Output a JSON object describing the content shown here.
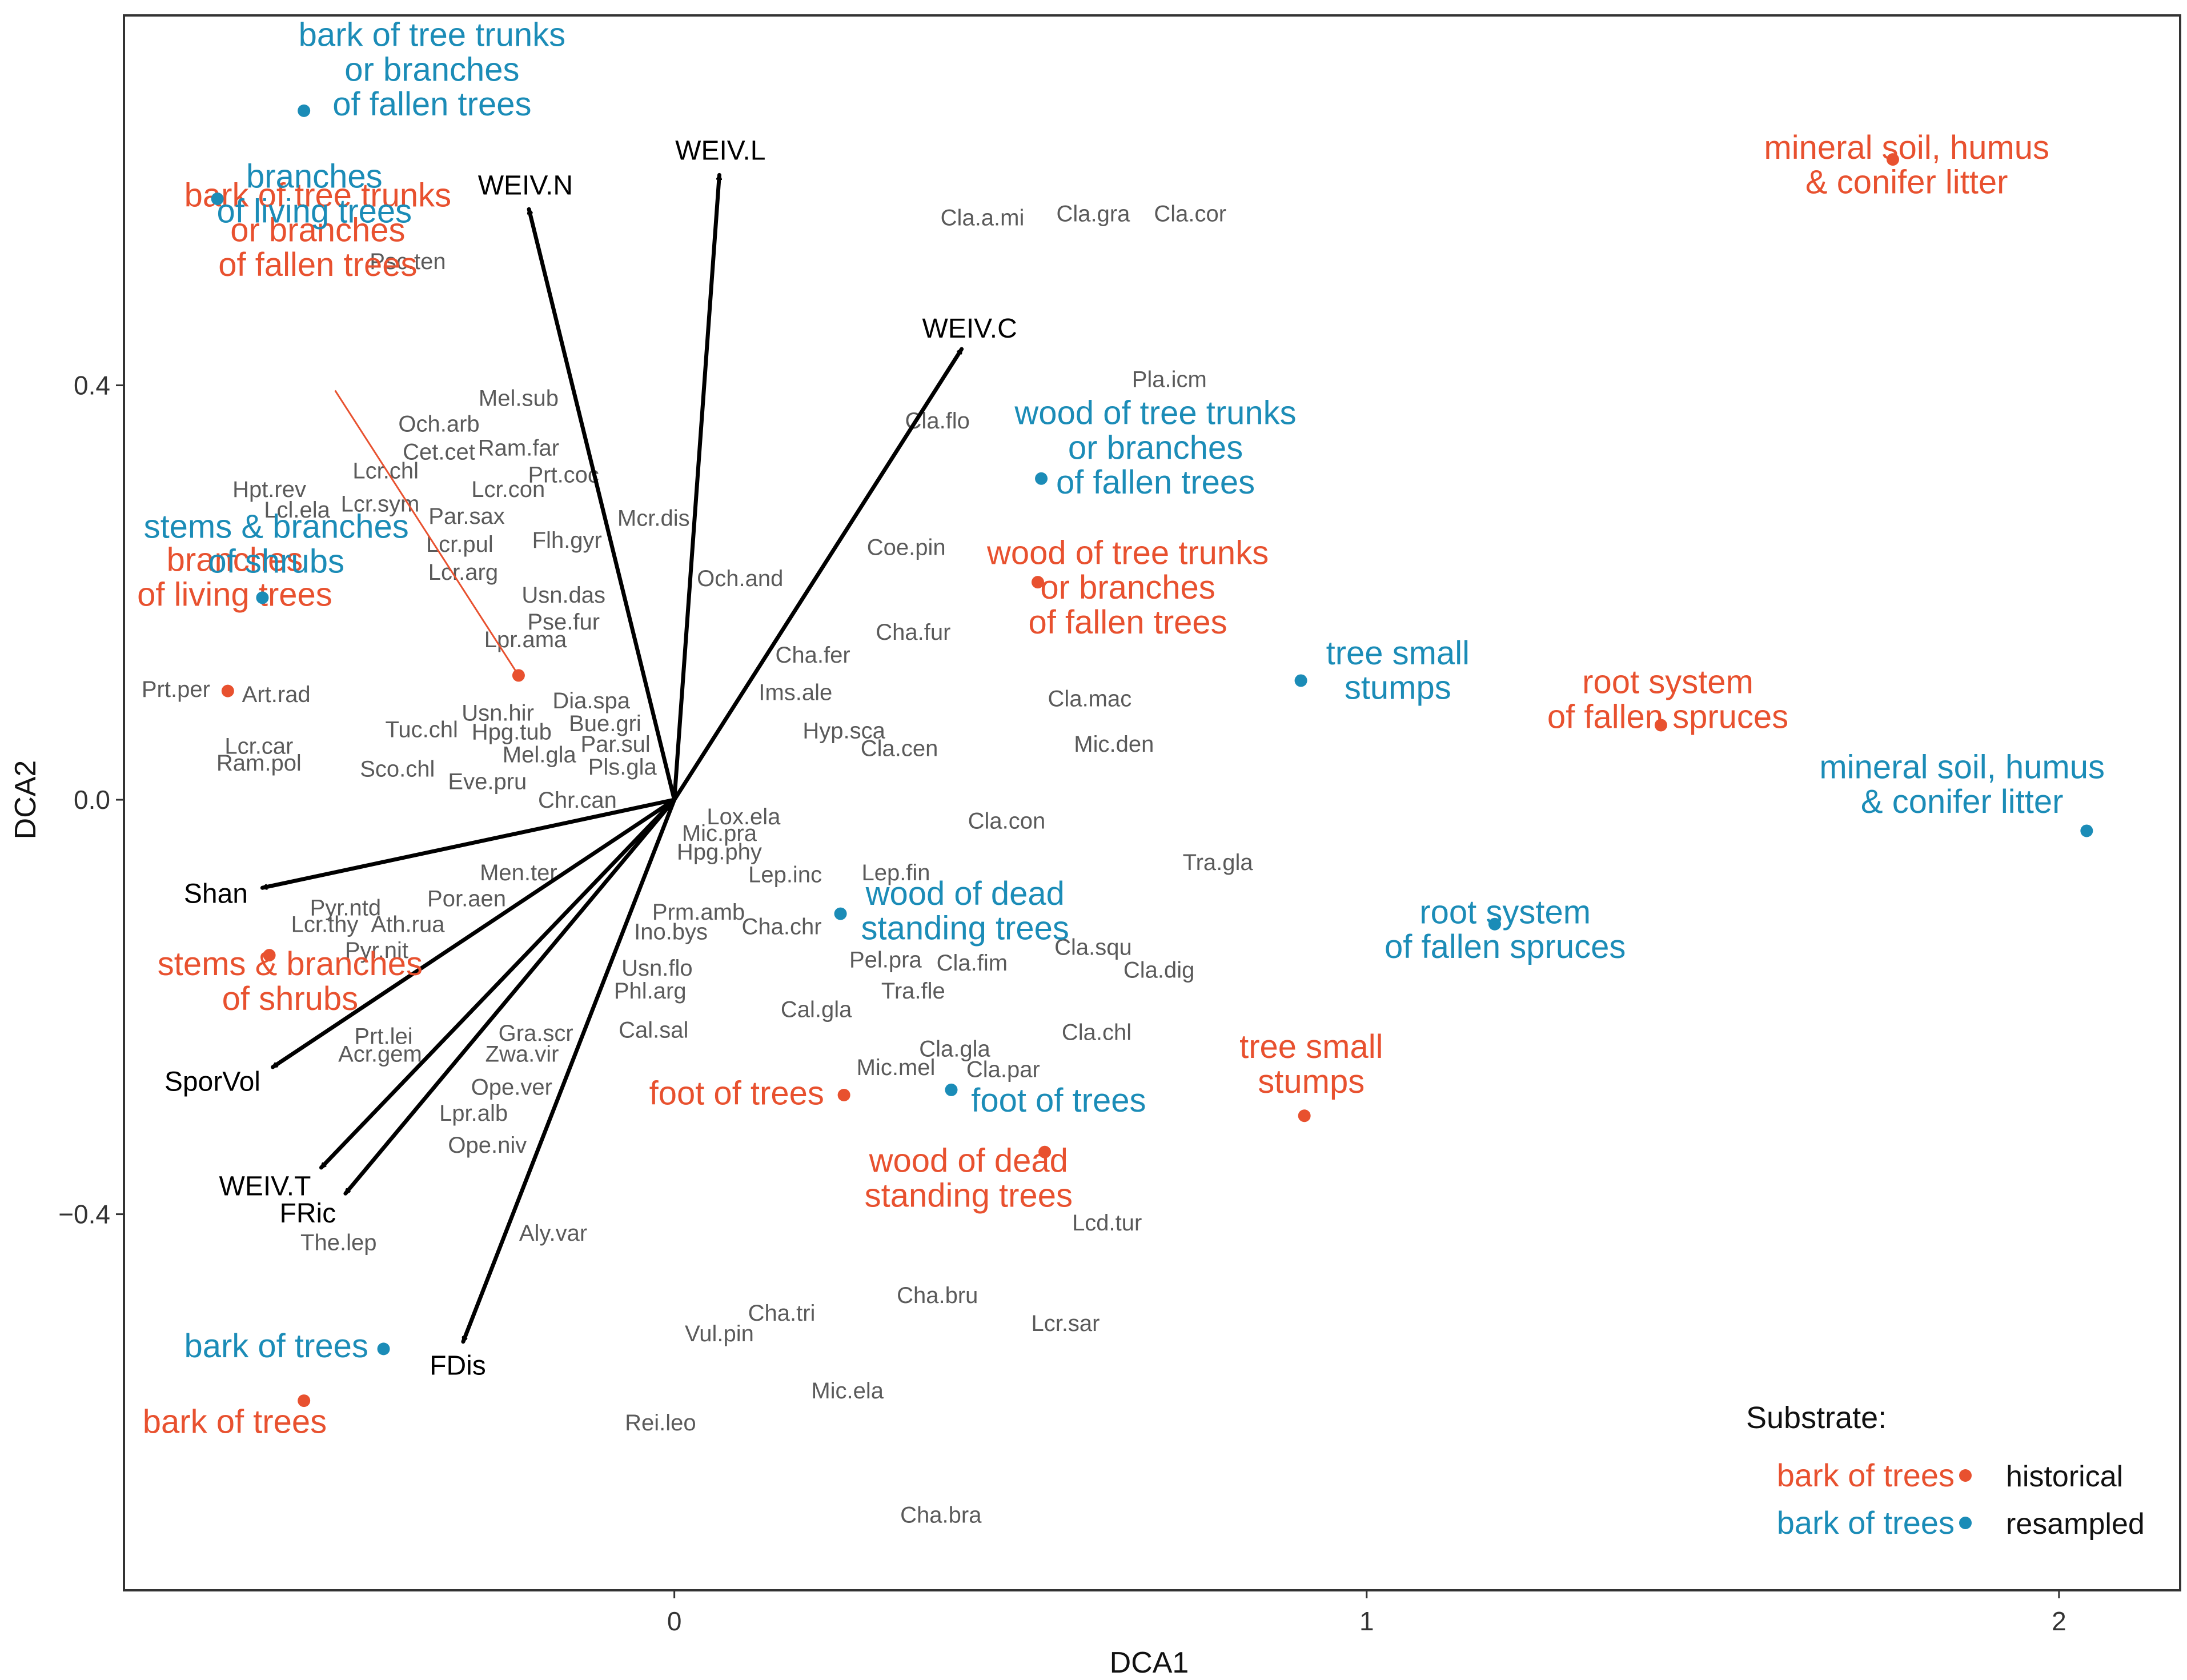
{
  "chart_data": {
    "type": "scatter",
    "title": "",
    "xlabel": "DCA1",
    "ylabel": "DCA2",
    "xlim": [
      -0.795,
      2.175
    ],
    "ylim": [
      -0.763,
      0.757
    ],
    "xticks": [
      {
        "value": 0,
        "label": "0"
      },
      {
        "value": 1,
        "label": "1"
      },
      {
        "value": 2,
        "label": "2"
      }
    ],
    "yticks": [
      {
        "value": 0.4,
        "label": "0.4"
      },
      {
        "value": 0.0,
        "label": "0.0"
      },
      {
        "value": -0.4,
        "label": "−0.4"
      }
    ],
    "grid": false,
    "colors": {
      "historical": "#e8512f",
      "resampled": "#1b8cb7",
      "arrow": "#000000",
      "species": "#5a5a5a",
      "frame": "#333333"
    },
    "legend": {
      "position": "bottom-right",
      "title": "Substrate:",
      "entries": [
        {
          "sample": "bark of trees",
          "label": "historical",
          "group": "historical"
        },
        {
          "sample": "bark of trees",
          "label": "resampled",
          "group": "resampled"
        }
      ]
    },
    "vectors": [
      {
        "label": "WEIV.N",
        "x": -0.21,
        "y": 0.57
      },
      {
        "label": "WEIV.L",
        "x": 0.065,
        "y": 0.603
      },
      {
        "label": "WEIV.C",
        "x": 0.415,
        "y": 0.435
      },
      {
        "label": "Shan",
        "x": -0.595,
        "y": -0.085
      },
      {
        "label": "SporVol",
        "x": -0.58,
        "y": -0.258
      },
      {
        "label": "WEIV.T",
        "x": -0.51,
        "y": -0.355
      },
      {
        "label": "FRic",
        "x": -0.475,
        "y": -0.38
      },
      {
        "label": "FDis",
        "x": -0.305,
        "y": -0.523
      }
    ],
    "series": [
      {
        "name": "historical",
        "points": [
          {
            "label": [
              "bark of tree trunks",
              "or branches",
              "of fallen trees"
            ],
            "x": -0.225,
            "y": 0.12
          },
          {
            "label": [
              "branches",
              "of living trees"
            ],
            "x": -0.645,
            "y": 0.105
          },
          {
            "label": [
              "stems & branches",
              "of shrubs"
            ],
            "x": -0.585,
            "y": -0.15
          },
          {
            "label": [
              "bark of trees"
            ],
            "x": -0.535,
            "y": -0.58
          },
          {
            "label": [
              "foot of trees"
            ],
            "x": 0.245,
            "y": -0.285
          },
          {
            "label": [
              "wood of dead",
              "standing trees"
            ],
            "x": 0.535,
            "y": -0.34
          },
          {
            "label": [
              "wood of tree trunks",
              "or branches",
              "of fallen trees"
            ],
            "x": 0.525,
            "y": 0.21
          },
          {
            "label": [
              "tree small",
              "stumps"
            ],
            "x": 0.91,
            "y": -0.305
          },
          {
            "label": [
              "root system",
              "of fallen spruces"
            ],
            "x": 1.425,
            "y": 0.072
          },
          {
            "label": [
              "mineral soil, humus",
              "& conifer litter"
            ],
            "x": 1.76,
            "y": 0.618
          }
        ]
      },
      {
        "name": "resampled",
        "points": [
          {
            "label": [
              "bark of tree trunks",
              "or branches",
              "of fallen trees"
            ],
            "x": -0.535,
            "y": 0.665
          },
          {
            "label": [
              "branches",
              "of living trees"
            ],
            "x": -0.66,
            "y": 0.58
          },
          {
            "label": [
              "stems & branches",
              "of shrubs"
            ],
            "x": -0.595,
            "y": 0.195
          },
          {
            "label": [
              "bark of trees"
            ],
            "x": -0.42,
            "y": -0.53
          },
          {
            "label": [
              "foot of trees"
            ],
            "x": 0.4,
            "y": -0.28
          },
          {
            "label": [
              "wood of dead",
              "standing trees"
            ],
            "x": 0.24,
            "y": -0.11
          },
          {
            "label": [
              "wood of tree trunks",
              "or branches",
              "of fallen trees"
            ],
            "x": 0.53,
            "y": 0.31
          },
          {
            "label": [
              "tree small",
              "stumps"
            ],
            "x": 0.905,
            "y": 0.115
          },
          {
            "label": [
              "root system",
              "of fallen spruces"
            ],
            "x": 1.185,
            "y": -0.12
          },
          {
            "label": [
              "mineral soil, humus",
              "& conifer litter"
            ],
            "x": 2.04,
            "y": -0.03
          }
        ]
      }
    ],
    "species": [
      {
        "label": "Psc.ten",
        "x": -0.385,
        "y": 0.52
      },
      {
        "label": "Mel.sub",
        "x": -0.225,
        "y": 0.388
      },
      {
        "label": "Och.arb",
        "x": -0.34,
        "y": 0.363
      },
      {
        "label": "Cet.cet",
        "x": -0.34,
        "y": 0.336
      },
      {
        "label": "Ram.far",
        "x": -0.225,
        "y": 0.34
      },
      {
        "label": "Lcr.chl",
        "x": -0.417,
        "y": 0.318
      },
      {
        "label": "Prt.coc",
        "x": -0.16,
        "y": 0.314
      },
      {
        "label": "Lcr.con",
        "x": -0.24,
        "y": 0.3
      },
      {
        "label": "Hpt.rev",
        "x": -0.585,
        "y": 0.3
      },
      {
        "label": "Lcl.ela",
        "x": -0.545,
        "y": 0.28
      },
      {
        "label": "Lcr.sym",
        "x": -0.425,
        "y": 0.286
      },
      {
        "label": "Par.sax",
        "x": -0.3,
        "y": 0.274
      },
      {
        "label": "Mcr.dis",
        "x": -0.03,
        "y": 0.272
      },
      {
        "label": "Lcr.pul",
        "x": -0.31,
        "y": 0.247
      },
      {
        "label": "Flh.gyr",
        "x": -0.155,
        "y": 0.251
      },
      {
        "label": "Lcr.arg",
        "x": -0.305,
        "y": 0.22
      },
      {
        "label": "Och.and",
        "x": 0.095,
        "y": 0.214
      },
      {
        "label": "Usn.das",
        "x": -0.16,
        "y": 0.198
      },
      {
        "label": "Pse.fur",
        "x": -0.16,
        "y": 0.172
      },
      {
        "label": "Lpr.ama",
        "x": -0.215,
        "y": 0.155
      },
      {
        "label": "Prt.per",
        "x": -0.72,
        "y": 0.107
      },
      {
        "label": "Art.rad",
        "x": -0.575,
        "y": 0.102
      },
      {
        "label": "Dia.spa",
        "x": -0.12,
        "y": 0.096
      },
      {
        "label": "Usn.hir",
        "x": -0.255,
        "y": 0.084
      },
      {
        "label": "Bue.gri",
        "x": -0.1,
        "y": 0.074
      },
      {
        "label": "Hpg.tub",
        "x": -0.235,
        "y": 0.066
      },
      {
        "label": "Tuc.chl",
        "x": -0.365,
        "y": 0.068
      },
      {
        "label": "Par.sul",
        "x": -0.085,
        "y": 0.054
      },
      {
        "label": "Mel.gla",
        "x": -0.195,
        "y": 0.044
      },
      {
        "label": "Pls.gla",
        "x": -0.075,
        "y": 0.032
      },
      {
        "label": "Lcr.car",
        "x": -0.6,
        "y": 0.052
      },
      {
        "label": "Ram.pol",
        "x": -0.6,
        "y": 0.036
      },
      {
        "label": "Sco.chl",
        "x": -0.4,
        "y": 0.03
      },
      {
        "label": "Eve.pru",
        "x": -0.27,
        "y": 0.018
      },
      {
        "label": "Chr.can",
        "x": -0.14,
        "y": 0.0
      },
      {
        "label": "Men.ter",
        "x": -0.225,
        "y": -0.07
      },
      {
        "label": "Por.aen",
        "x": -0.3,
        "y": -0.095
      },
      {
        "label": "Pyr.ntd",
        "x": -0.475,
        "y": -0.104
      },
      {
        "label": "Lcr.thy",
        "x": -0.505,
        "y": -0.12
      },
      {
        "label": "Ath.rua",
        "x": -0.385,
        "y": -0.12
      },
      {
        "label": "Pyr.nit",
        "x": -0.43,
        "y": -0.145
      },
      {
        "label": "Prt.lei",
        "x": -0.42,
        "y": -0.228
      },
      {
        "label": "Acr.gem",
        "x": -0.425,
        "y": -0.245
      },
      {
        "label": "Gra.scr",
        "x": -0.2,
        "y": -0.225
      },
      {
        "label": "Zwa.vir",
        "x": -0.22,
        "y": -0.245
      },
      {
        "label": "Ope.ver",
        "x": -0.235,
        "y": -0.277
      },
      {
        "label": "Lpr.alb",
        "x": -0.29,
        "y": -0.302
      },
      {
        "label": "Ope.niv",
        "x": -0.27,
        "y": -0.333
      },
      {
        "label": "The.lep",
        "x": -0.485,
        "y": -0.427
      },
      {
        "label": "Aly.var",
        "x": -0.175,
        "y": -0.418
      },
      {
        "label": "Lox.ela",
        "x": 0.1,
        "y": -0.016
      },
      {
        "label": "Mic.pra",
        "x": 0.065,
        "y": -0.032
      },
      {
        "label": "Hpg.phy",
        "x": 0.065,
        "y": -0.05
      },
      {
        "label": "Lep.inc",
        "x": 0.16,
        "y": -0.072
      },
      {
        "label": "Lep.fin",
        "x": 0.32,
        "y": -0.07
      },
      {
        "label": "Prm.amb",
        "x": 0.035,
        "y": -0.108
      },
      {
        "label": "Cha.chr",
        "x": 0.155,
        "y": -0.122
      },
      {
        "label": "Ino.bys",
        "x": -0.005,
        "y": -0.127
      },
      {
        "label": "Usn.flo",
        "x": -0.025,
        "y": -0.162
      },
      {
        "label": "Phl.arg",
        "x": -0.035,
        "y": -0.184
      },
      {
        "label": "Cal.sal",
        "x": -0.03,
        "y": -0.222
      },
      {
        "label": "Pel.pra",
        "x": 0.305,
        "y": -0.154
      },
      {
        "label": "Cla.fim",
        "x": 0.43,
        "y": -0.157
      },
      {
        "label": "Tra.fle",
        "x": 0.345,
        "y": -0.184
      },
      {
        "label": "Cal.gla",
        "x": 0.205,
        "y": -0.202
      },
      {
        "label": "Cla.gla",
        "x": 0.405,
        "y": -0.24
      },
      {
        "label": "Mic.mel",
        "x": 0.32,
        "y": -0.258
      },
      {
        "label": "Cla.par",
        "x": 0.475,
        "y": -0.26
      },
      {
        "label": "Cla.squ",
        "x": 0.605,
        "y": -0.142
      },
      {
        "label": "Cla.dig",
        "x": 0.7,
        "y": -0.164
      },
      {
        "label": "Cla.chl",
        "x": 0.61,
        "y": -0.224
      },
      {
        "label": "Cla.con",
        "x": 0.48,
        "y": -0.02
      },
      {
        "label": "Tra.gla",
        "x": 0.785,
        "y": -0.06
      },
      {
        "label": "Cha.fer",
        "x": 0.2,
        "y": 0.14
      },
      {
        "label": "Ims.ale",
        "x": 0.175,
        "y": 0.104
      },
      {
        "label": "Hyp.sca",
        "x": 0.245,
        "y": 0.067
      },
      {
        "label": "Cla.cen",
        "x": 0.325,
        "y": 0.05
      },
      {
        "label": "Cha.fur",
        "x": 0.345,
        "y": 0.162
      },
      {
        "label": "Cla.mac",
        "x": 0.6,
        "y": 0.098
      },
      {
        "label": "Mic.den",
        "x": 0.635,
        "y": 0.054
      },
      {
        "label": "Coe.pin",
        "x": 0.335,
        "y": 0.244
      },
      {
        "label": "Cla.flo",
        "x": 0.38,
        "y": 0.366
      },
      {
        "label": "Pla.icm",
        "x": 0.715,
        "y": 0.406
      },
      {
        "label": "Cla.a.mi",
        "x": 0.445,
        "y": 0.562
      },
      {
        "label": "Cla.gra",
        "x": 0.605,
        "y": 0.566
      },
      {
        "label": "Cla.cor",
        "x": 0.745,
        "y": 0.566
      },
      {
        "label": "Lcd.tur",
        "x": 0.625,
        "y": -0.408
      },
      {
        "label": "Cha.bru",
        "x": 0.38,
        "y": -0.478
      },
      {
        "label": "Lcr.sar",
        "x": 0.565,
        "y": -0.505
      },
      {
        "label": "Cha.tri",
        "x": 0.155,
        "y": -0.495
      },
      {
        "label": "Vul.pin",
        "x": 0.065,
        "y": -0.515
      },
      {
        "label": "Mic.ela",
        "x": 0.25,
        "y": -0.57
      },
      {
        "label": "Rei.leo",
        "x": -0.02,
        "y": -0.601
      },
      {
        "label": "Cha.bra",
        "x": 0.385,
        "y": -0.69
      }
    ]
  }
}
